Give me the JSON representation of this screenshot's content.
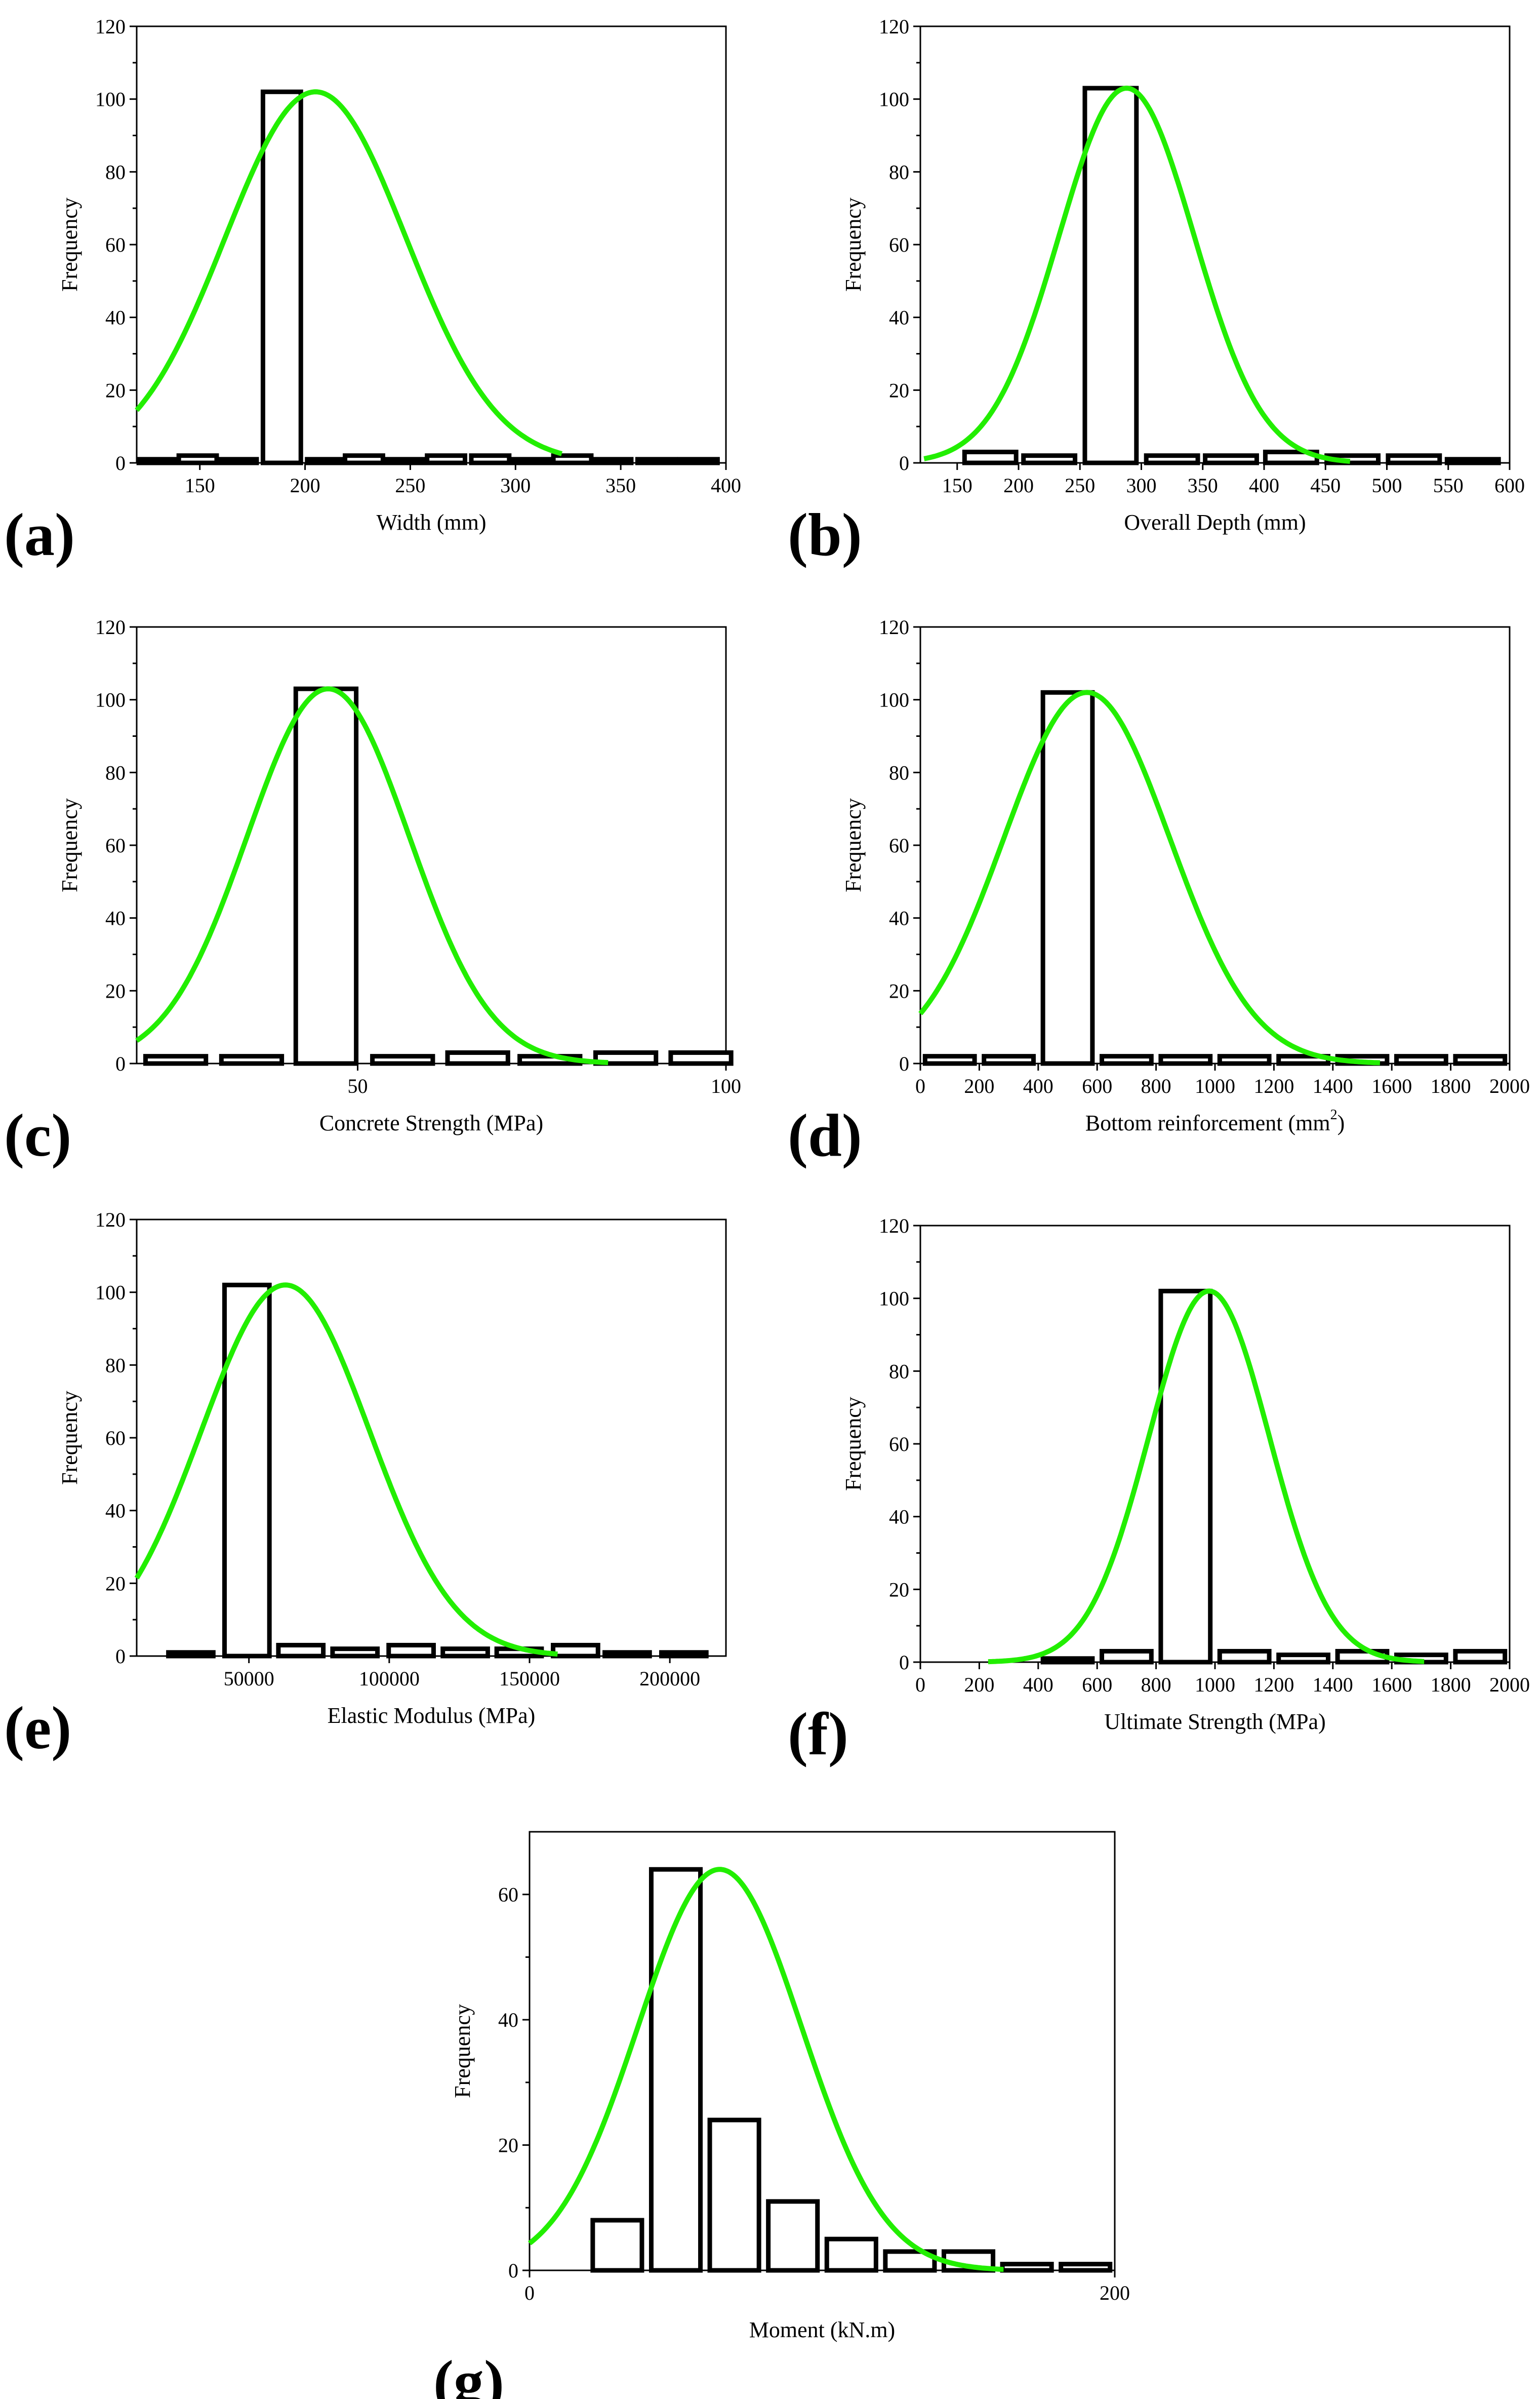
{
  "chart_data": [
    {
      "id": "a",
      "type": "bar",
      "panel_label": "(a)",
      "title": "",
      "xlabel": "Width (mm)",
      "ylabel": "Frequency",
      "xlim": [
        120,
        400
      ],
      "ylim": [
        0,
        120
      ],
      "xticks": [
        150,
        200,
        250,
        300,
        350,
        400
      ],
      "yticks": [
        0,
        20,
        40,
        60,
        80,
        100,
        120
      ],
      "bin_width": 18,
      "bars": [
        {
          "x": 130,
          "count": 1
        },
        {
          "x": 149,
          "count": 2
        },
        {
          "x": 168,
          "count": 1
        },
        {
          "x": 189,
          "count": 102
        },
        {
          "x": 210,
          "count": 1
        },
        {
          "x": 228,
          "count": 2
        },
        {
          "x": 248,
          "count": 1
        },
        {
          "x": 267,
          "count": 2
        },
        {
          "x": 288,
          "count": 2
        },
        {
          "x": 308,
          "count": 1
        },
        {
          "x": 327,
          "count": 2
        },
        {
          "x": 346,
          "count": 1
        },
        {
          "x": 367,
          "count": 1
        },
        {
          "x": 387,
          "count": 1
        }
      ],
      "fit_curve": {
        "mean": 205,
        "sd": 43,
        "peak": 102,
        "x_range": [
          120,
          322
        ]
      },
      "colors": {
        "bar": "#000000",
        "curve": "#22ee00"
      }
    },
    {
      "id": "b",
      "type": "bar",
      "panel_label": "(b)",
      "title": "",
      "xlabel": "Overall Depth (mm)",
      "ylabel": "Frequency",
      "xlim": [
        120,
        600
      ],
      "ylim": [
        0,
        120
      ],
      "xticks": [
        150,
        200,
        250,
        300,
        350,
        400,
        450,
        500,
        550,
        600
      ],
      "yticks": [
        0,
        20,
        40,
        60,
        80,
        100,
        120
      ],
      "bin_width": 42,
      "bars": [
        {
          "x": 177,
          "count": 3
        },
        {
          "x": 225,
          "count": 2
        },
        {
          "x": 275,
          "count": 103
        },
        {
          "x": 325,
          "count": 2
        },
        {
          "x": 373,
          "count": 2
        },
        {
          "x": 422,
          "count": 3
        },
        {
          "x": 472,
          "count": 2
        },
        {
          "x": 522,
          "count": 2
        },
        {
          "x": 570,
          "count": 1
        }
      ],
      "fit_curve": {
        "mean": 288,
        "sd": 55,
        "peak": 103,
        "x_range": [
          123,
          470
        ]
      },
      "colors": {
        "bar": "#000000",
        "curve": "#22ee00"
      }
    },
    {
      "id": "c",
      "type": "bar",
      "panel_label": "(c)",
      "title": "",
      "xlabel": "Concrete Strength (MPa)",
      "ylabel": "Frequency",
      "xlim": [
        20,
        100
      ],
      "ylim": [
        0,
        120
      ],
      "xticks": [
        50,
        100
      ],
      "yticks": [
        0,
        20,
        40,
        60,
        80,
        100,
        120
      ],
      "bin_width": 8.2,
      "bars": [
        {
          "x": 25.3,
          "count": 2
        },
        {
          "x": 35.6,
          "count": 2
        },
        {
          "x": 45.7,
          "count": 103
        },
        {
          "x": 56.1,
          "count": 2
        },
        {
          "x": 66.3,
          "count": 3
        },
        {
          "x": 76.1,
          "count": 2
        },
        {
          "x": 86.4,
          "count": 3
        },
        {
          "x": 96.6,
          "count": 3
        }
      ],
      "fit_curve": {
        "mean": 46,
        "sd": 11,
        "peak": 103,
        "x_range": [
          20,
          84
        ]
      },
      "colors": {
        "bar": "#000000",
        "curve": "#22ee00"
      }
    },
    {
      "id": "d",
      "type": "bar",
      "panel_label": "(d)",
      "title": "",
      "xlabel": "Bottom reinforcement (mm",
      "xlabel_sup": "2",
      "xlabel_end": ")",
      "ylabel": "Frequency",
      "xlim": [
        0,
        2000
      ],
      "ylim": [
        0,
        120
      ],
      "xticks": [
        0,
        200,
        400,
        600,
        800,
        1000,
        1200,
        1400,
        1600,
        1800,
        2000
      ],
      "yticks": [
        0,
        20,
        40,
        60,
        80,
        100,
        120
      ],
      "bin_width": 168,
      "bars": [
        {
          "x": 100,
          "count": 2
        },
        {
          "x": 300,
          "count": 2
        },
        {
          "x": 500,
          "count": 102
        },
        {
          "x": 700,
          "count": 2
        },
        {
          "x": 900,
          "count": 2
        },
        {
          "x": 1100,
          "count": 2
        },
        {
          "x": 1300,
          "count": 2
        },
        {
          "x": 1500,
          "count": 2
        },
        {
          "x": 1700,
          "count": 2
        },
        {
          "x": 1900,
          "count": 2
        }
      ],
      "fit_curve": {
        "mean": 565,
        "sd": 282,
        "peak": 102,
        "x_range": [
          0,
          1560
        ]
      },
      "colors": {
        "bar": "#000000",
        "curve": "#22ee00"
      }
    },
    {
      "id": "e",
      "type": "bar",
      "panel_label": "(e)",
      "title": "",
      "xlabel": "Elastic Modulus (MPa)",
      "ylabel": "Frequency",
      "xlim": [
        10000,
        220000
      ],
      "ylim": [
        0,
        120
      ],
      "xticks": [
        50000,
        100000,
        150000,
        200000
      ],
      "yticks": [
        0,
        20,
        40,
        60,
        80,
        100,
        120
      ],
      "bin_width": 16000,
      "bars": [
        {
          "x": 29300,
          "count": 1
        },
        {
          "x": 49300,
          "count": 102
        },
        {
          "x": 68500,
          "count": 3
        },
        {
          "x": 87800,
          "count": 2
        },
        {
          "x": 107800,
          "count": 3
        },
        {
          "x": 127100,
          "count": 2
        },
        {
          "x": 146300,
          "count": 2
        },
        {
          "x": 166400,
          "count": 3
        },
        {
          "x": 184800,
          "count": 1
        },
        {
          "x": 205000,
          "count": 1
        }
      ],
      "fit_curve": {
        "mean": 63000,
        "sd": 30000,
        "peak": 102,
        "x_range": [
          10000,
          160000
        ]
      },
      "colors": {
        "bar": "#000000",
        "curve": "#22ee00"
      }
    },
    {
      "id": "f",
      "type": "bar",
      "panel_label": "(f)",
      "title": "",
      "xlabel": "Ultimate Strength (MPa)",
      "ylabel": "Frequency",
      "xlim": [
        0,
        2000
      ],
      "ylim": [
        0,
        120
      ],
      "xticks": [
        0,
        200,
        400,
        600,
        800,
        1000,
        1200,
        1400,
        1600,
        1800,
        2000
      ],
      "yticks": [
        0,
        20,
        40,
        60,
        80,
        100,
        120
      ],
      "bin_width": 168,
      "bars": [
        {
          "x": 500,
          "count": 1
        },
        {
          "x": 700,
          "count": 3
        },
        {
          "x": 900,
          "count": 102
        },
        {
          "x": 1100,
          "count": 3
        },
        {
          "x": 1300,
          "count": 2
        },
        {
          "x": 1500,
          "count": 3
        },
        {
          "x": 1700,
          "count": 2
        },
        {
          "x": 1900,
          "count": 3
        }
      ],
      "fit_curve": {
        "mean": 980,
        "sd": 205,
        "peak": 102,
        "x_range": [
          230,
          1710
        ]
      },
      "colors": {
        "bar": "#000000",
        "curve": "#22ee00"
      }
    },
    {
      "id": "g",
      "type": "bar",
      "panel_label": "(g)",
      "title": "",
      "xlabel": "Moment (kN.m)",
      "ylabel": "Frequency",
      "xlim": [
        0,
        200
      ],
      "ylim": [
        0,
        70
      ],
      "xticks": [
        0,
        200
      ],
      "yticks": [
        0,
        20,
        40,
        60
      ],
      "bin_width": 16.8,
      "bars": [
        {
          "x": 30,
          "count": 8
        },
        {
          "x": 50,
          "count": 64
        },
        {
          "x": 70,
          "count": 24
        },
        {
          "x": 90,
          "count": 11
        },
        {
          "x": 110,
          "count": 5
        },
        {
          "x": 130,
          "count": 3
        },
        {
          "x": 150,
          "count": 3
        },
        {
          "x": 170,
          "count": 1
        },
        {
          "x": 190,
          "count": 1
        }
      ],
      "fit_curve": {
        "mean": 65,
        "sd": 28,
        "peak": 64,
        "x_range": [
          0,
          162
        ]
      },
      "colors": {
        "bar": "#000000",
        "curve": "#22ee00"
      }
    }
  ]
}
